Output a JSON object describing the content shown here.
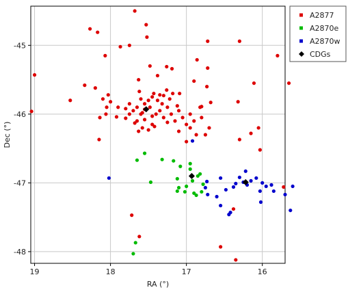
{
  "chart_data": {
    "type": "scatter",
    "xlabel": "RA (°)",
    "ylabel": "Dec (°)",
    "xlim": [
      19.05,
      15.7
    ],
    "ylim": [
      -48.17,
      -44.43
    ],
    "x_reversed": true,
    "grid": true,
    "legend_position": "top-right",
    "xticks": [
      19,
      18,
      17,
      16
    ],
    "yticks": [
      -45,
      -46,
      -47,
      -48
    ],
    "series": [
      {
        "name": "A2877",
        "color": "#dd0000",
        "marker": "circle",
        "points": [
          [
            17.68,
            -44.5
          ],
          [
            17.53,
            -44.7
          ],
          [
            17.52,
            -44.88
          ],
          [
            17.75,
            -45.0
          ],
          [
            17.87,
            -45.02
          ],
          [
            18.27,
            -44.76
          ],
          [
            18.17,
            -44.81
          ],
          [
            19.0,
            -45.43
          ],
          [
            19.04,
            -45.96
          ],
          [
            18.53,
            -45.8
          ],
          [
            18.34,
            -45.58
          ],
          [
            18.07,
            -45.15
          ],
          [
            17.48,
            -45.3
          ],
          [
            17.63,
            -45.5
          ],
          [
            17.38,
            -45.44
          ],
          [
            17.26,
            -45.31
          ],
          [
            17.19,
            -45.34
          ],
          [
            17.09,
            -45.7
          ],
          [
            16.9,
            -45.52
          ],
          [
            16.86,
            -45.21
          ],
          [
            16.72,
            -44.94
          ],
          [
            16.3,
            -44.94
          ],
          [
            15.8,
            -45.15
          ],
          [
            15.65,
            -45.55
          ],
          [
            16.11,
            -45.55
          ],
          [
            16.32,
            -45.82
          ],
          [
            16.3,
            -46.37
          ],
          [
            16.15,
            -46.28
          ],
          [
            16.05,
            -46.2
          ],
          [
            16.03,
            -46.52
          ],
          [
            16.72,
            -45.33
          ],
          [
            16.73,
            -45.6
          ],
          [
            16.68,
            -45.83
          ],
          [
            16.8,
            -45.89
          ],
          [
            16.95,
            -46.0
          ],
          [
            17.1,
            -45.95
          ],
          [
            17.25,
            -45.9
          ],
          [
            17.43,
            -45.7
          ],
          [
            17.6,
            -45.78
          ],
          [
            17.75,
            -45.85
          ],
          [
            17.9,
            -45.9
          ],
          [
            18.03,
            -45.72
          ],
          [
            18.1,
            -45.78
          ],
          [
            18.2,
            -45.62
          ],
          [
            18.06,
            -46.0
          ],
          [
            18.05,
            -45.9
          ],
          [
            17.8,
            -46.06
          ],
          [
            17.68,
            -46.13
          ],
          [
            17.6,
            -46.0
          ],
          [
            17.45,
            -46.15
          ],
          [
            17.58,
            -46.2
          ],
          [
            17.63,
            -46.25
          ],
          [
            17.5,
            -46.23
          ],
          [
            17.4,
            -46.0
          ],
          [
            17.32,
            -45.85
          ],
          [
            17.22,
            -45.78
          ],
          [
            17.18,
            -45.7
          ],
          [
            17.3,
            -45.73
          ],
          [
            17.38,
            -45.8
          ],
          [
            17.48,
            -45.9
          ],
          [
            17.55,
            -45.93
          ],
          [
            17.58,
            -45.98
          ],
          [
            17.45,
            -46.03
          ],
          [
            17.35,
            -45.95
          ],
          [
            17.3,
            -46.05
          ],
          [
            17.2,
            -46.0
          ],
          [
            17.15,
            -46.1
          ],
          [
            17.05,
            -46.05
          ],
          [
            17.0,
            -46.15
          ],
          [
            16.9,
            -46.1
          ],
          [
            16.8,
            -46.05
          ],
          [
            16.82,
            -45.9
          ],
          [
            16.95,
            -46.2
          ],
          [
            16.87,
            -46.3
          ],
          [
            16.7,
            -46.2
          ],
          [
            16.75,
            -46.3
          ],
          [
            17.0,
            -46.4
          ],
          [
            17.1,
            -46.25
          ],
          [
            17.7,
            -45.95
          ],
          [
            17.75,
            -46.0
          ],
          [
            17.8,
            -45.92
          ],
          [
            17.55,
            -45.85
          ],
          [
            17.65,
            -45.9
          ],
          [
            17.5,
            -45.8
          ],
          [
            17.45,
            -45.75
          ],
          [
            17.35,
            -45.72
          ],
          [
            17.26,
            -45.65
          ],
          [
            17.12,
            -45.88
          ],
          [
            17.25,
            -46.12
          ],
          [
            17.42,
            -46.18
          ],
          [
            17.65,
            -46.1
          ],
          [
            17.92,
            -46.04
          ],
          [
            18.0,
            -45.82
          ],
          [
            17.55,
            -46.08
          ],
          [
            17.62,
            -45.67
          ],
          [
            18.14,
            -46.05
          ],
          [
            18.15,
            -46.37
          ],
          [
            17.72,
            -47.47
          ],
          [
            17.62,
            -47.78
          ],
          [
            16.55,
            -47.93
          ],
          [
            16.38,
            -47.38
          ],
          [
            16.35,
            -48.12
          ],
          [
            15.72,
            -47.06
          ]
        ]
      },
      {
        "name": "A2870e",
        "color": "#00bb00",
        "marker": "circle",
        "points": [
          [
            17.65,
            -46.67
          ],
          [
            17.55,
            -46.57
          ],
          [
            17.32,
            -46.66
          ],
          [
            17.17,
            -46.68
          ],
          [
            17.08,
            -46.76
          ],
          [
            16.95,
            -46.72
          ],
          [
            16.95,
            -46.8
          ],
          [
            17.47,
            -46.99
          ],
          [
            17.12,
            -46.94
          ],
          [
            17.1,
            -47.07
          ],
          [
            17.12,
            -47.12
          ],
          [
            17.02,
            -47.13
          ],
          [
            17.0,
            -47.05
          ],
          [
            16.92,
            -46.97
          ],
          [
            16.9,
            -47.15
          ],
          [
            16.87,
            -47.18
          ],
          [
            16.82,
            -46.87
          ],
          [
            16.78,
            -47.02
          ],
          [
            16.8,
            -47.13
          ],
          [
            16.85,
            -46.9
          ],
          [
            17.67,
            -47.87
          ],
          [
            17.7,
            -48.03
          ]
        ]
      },
      {
        "name": "A2870w",
        "color": "#0000cc",
        "marker": "circle",
        "points": [
          [
            18.02,
            -46.93
          ],
          [
            16.92,
            -46.39
          ],
          [
            16.73,
            -46.98
          ],
          [
            16.75,
            -47.07
          ],
          [
            16.72,
            -47.17
          ],
          [
            16.6,
            -47.2
          ],
          [
            16.55,
            -47.33
          ],
          [
            16.48,
            -47.1
          ],
          [
            16.55,
            -46.93
          ],
          [
            16.38,
            -47.06
          ],
          [
            16.42,
            -47.43
          ],
          [
            16.22,
            -46.83
          ],
          [
            16.25,
            -46.99
          ],
          [
            16.15,
            -46.97
          ],
          [
            16.08,
            -46.93
          ],
          [
            16.0,
            -47.0
          ],
          [
            15.95,
            -47.05
          ],
          [
            16.03,
            -47.12
          ],
          [
            16.02,
            -47.28
          ],
          [
            15.88,
            -47.03
          ],
          [
            15.85,
            -47.12
          ],
          [
            15.7,
            -47.17
          ],
          [
            15.6,
            -47.05
          ],
          [
            15.63,
            -47.4
          ],
          [
            16.2,
            -47.03
          ],
          [
            16.3,
            -46.92
          ],
          [
            16.35,
            -47.01
          ],
          [
            16.44,
            -47.46
          ]
        ]
      },
      {
        "name": "CDGs",
        "color": "#000000",
        "marker": "diamond",
        "points": [
          [
            17.53,
            -45.93
          ],
          [
            16.93,
            -46.9
          ],
          [
            16.22,
            -46.99
          ]
        ]
      }
    ]
  }
}
